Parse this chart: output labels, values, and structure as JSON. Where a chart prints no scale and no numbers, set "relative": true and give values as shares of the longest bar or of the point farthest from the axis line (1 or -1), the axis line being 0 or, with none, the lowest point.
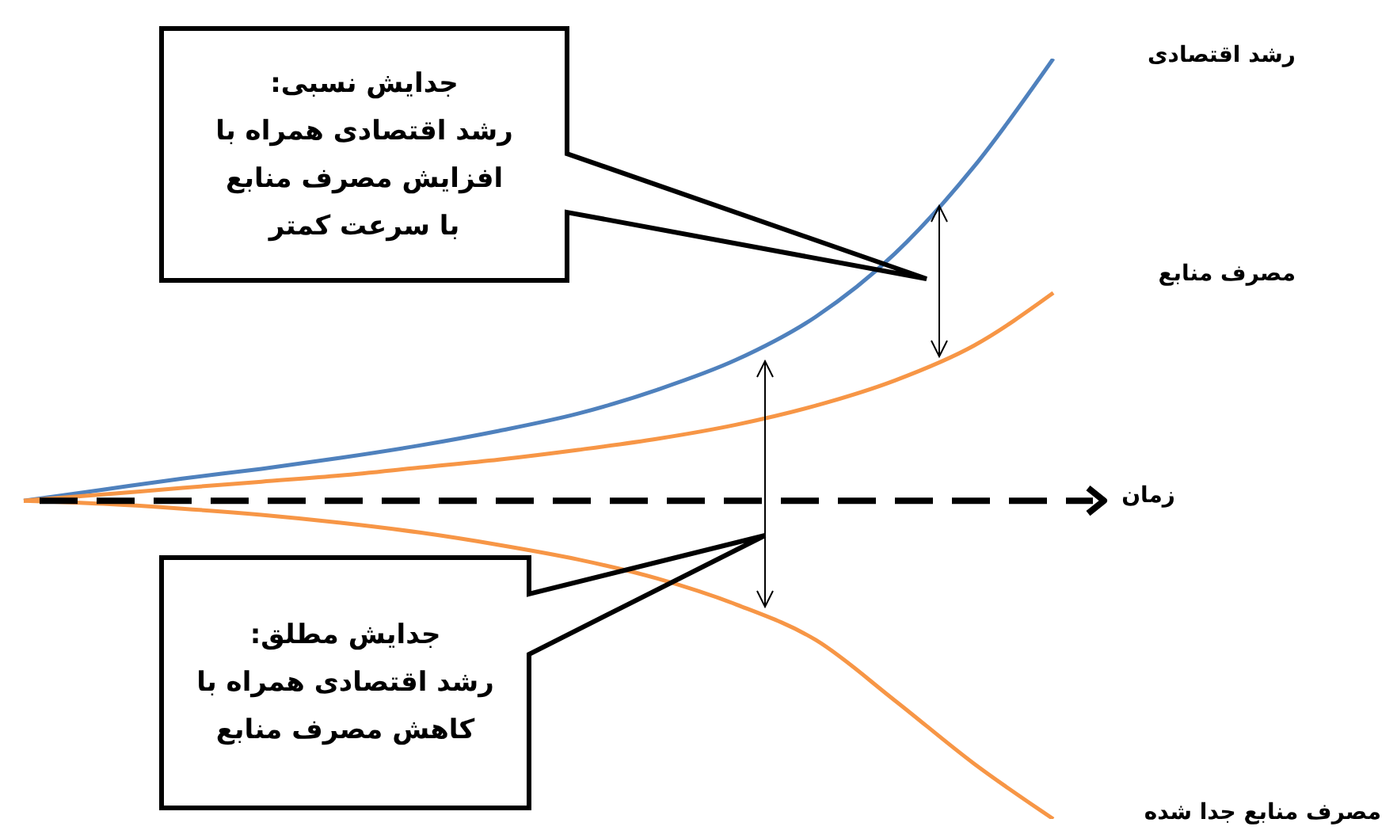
{
  "chart_data": {
    "type": "line",
    "relative": true,
    "ref_lines": [
      {
        "axis": "y",
        "value": 0,
        "label": "زمان",
        "color": "#000000",
        "line_style": "dashed"
      }
    ],
    "categories": [
      null,
      null,
      null,
      null,
      null,
      null,
      null,
      null,
      null,
      null,
      null,
      null,
      null,
      null
    ],
    "series": [
      {
        "name": "رشد اقتصادی",
        "color": "#4f81bd",
        "values": [
          0,
          0.025,
          0.05,
          0.072,
          0.097,
          0.125,
          0.158,
          0.197,
          0.251,
          0.319,
          0.416,
          0.559,
          0.756,
          1
        ]
      },
      {
        "name": "مصرف منابع",
        "color": "#f79646",
        "values": [
          0,
          0.014,
          0.029,
          0.043,
          0.057,
          0.075,
          0.093,
          0.115,
          0.14,
          0.172,
          0.215,
          0.272,
          0.351,
          0.47
        ]
      },
      {
        "name": "مصرف منابع جدا شده",
        "color": "#f79646",
        "values": [
          0,
          -0.007,
          -0.018,
          -0.032,
          -0.05,
          -0.072,
          -0.1,
          -0.133,
          -0.176,
          -0.235,
          -0.315,
          -0.452,
          -0.595,
          -0.72
        ]
      }
    ],
    "annotations": [
      "جدایش نسبی:\nرشد اقتصادی همراه با\nافزایش مصرف منابع\nبا سرعت کمتر",
      "جدایش مطلق:\nرشد اقتصادی همراه با\nکاهش مصرف منابع"
    ],
    "marker": "none",
    "line_style": "solid",
    "grid": false,
    "legend": false
  }
}
